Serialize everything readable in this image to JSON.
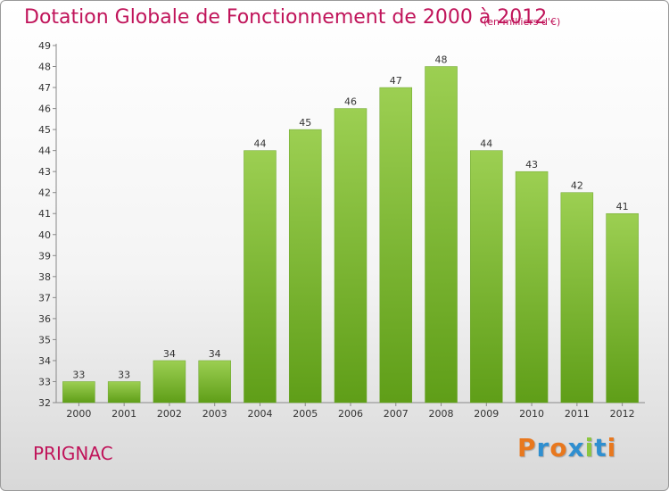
{
  "title": "Dotation Globale de Fonctionnement de 2000 à 2012",
  "subtitle": "(en milliers d'€)",
  "commune": "PRIGNAC",
  "logo": "Proxiti",
  "colors": {
    "title": "#c0145a",
    "bar_top": "#9ccf52",
    "bar_bottom": "#5f9e18",
    "logo_letters": [
      "#e8781e",
      "#2f8fd0",
      "#e8781e",
      "#2f8fd0",
      "#8cc63f",
      "#2f8fd0",
      "#e8781e"
    ]
  },
  "chart_data": {
    "type": "bar",
    "categories": [
      "2000",
      "2001",
      "2002",
      "2003",
      "2004",
      "2005",
      "2006",
      "2007",
      "2008",
      "2009",
      "2010",
      "2011",
      "2012"
    ],
    "values": [
      33,
      33,
      34,
      34,
      44,
      45,
      46,
      47,
      48,
      44,
      43,
      42,
      41
    ],
    "title": "Dotation Globale de Fonctionnement de 2000 à 2012",
    "xlabel": "",
    "ylabel": "",
    "ylim": [
      32,
      49
    ],
    "yticks": [
      32,
      33,
      34,
      35,
      36,
      37,
      38,
      39,
      40,
      41,
      42,
      43,
      44,
      45,
      46,
      47,
      48,
      49
    ],
    "grid": false,
    "data_labels": true
  }
}
